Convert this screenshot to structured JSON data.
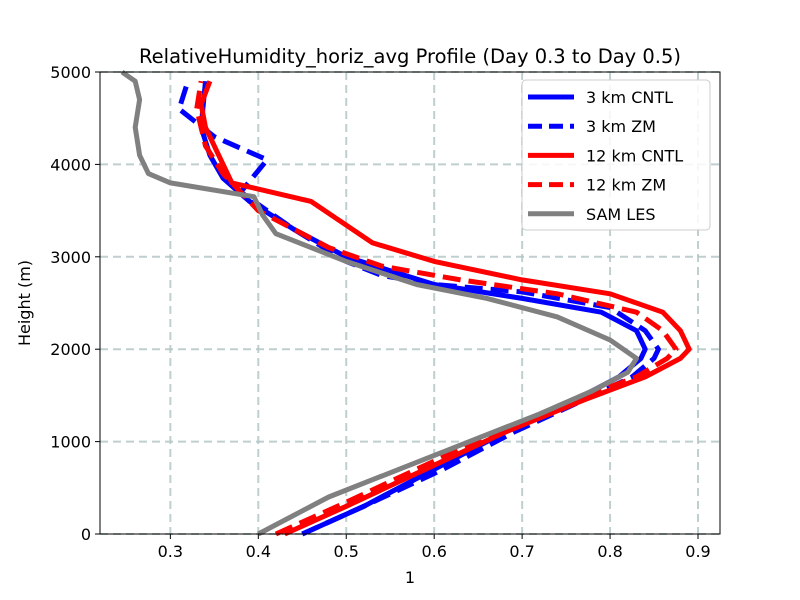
{
  "chart_data": {
    "type": "line",
    "title": "RelativeHumidity_horiz_avg Profile (Day 0.3 to Day 0.5)",
    "xlabel": "1",
    "ylabel": "Height (m)",
    "xlim": [
      0.22,
      0.925
    ],
    "ylim": [
      0,
      5000
    ],
    "xticks": [
      0.3,
      0.4,
      0.5,
      0.6,
      0.7,
      0.8,
      0.9
    ],
    "xtick_labels": [
      "0.3",
      "0.4",
      "0.5",
      "0.6",
      "0.7",
      "0.8",
      "0.9"
    ],
    "yticks": [
      0,
      1000,
      2000,
      3000,
      4000,
      5000
    ],
    "ytick_labels": [
      "0",
      "1000",
      "2000",
      "3000",
      "4000",
      "5000"
    ],
    "grid": true,
    "legend_position": "top-right",
    "series": [
      {
        "name": "3 km CNTL",
        "color": "#0000ff",
        "dashed": false,
        "x": [
          0.45,
          0.52,
          0.6,
          0.68,
          0.76,
          0.81,
          0.835,
          0.84,
          0.83,
          0.79,
          0.7,
          0.6,
          0.55,
          0.5,
          0.44,
          0.39,
          0.36,
          0.345,
          0.335,
          0.34
        ],
        "y": [
          0,
          300,
          700,
          1100,
          1450,
          1700,
          1900,
          2000,
          2200,
          2400,
          2550,
          2700,
          2850,
          3000,
          3300,
          3600,
          3850,
          4100,
          4400,
          4900
        ]
      },
      {
        "name": "3 km ZM",
        "color": "#0000ff",
        "dashed": true,
        "x": [
          0.45,
          0.52,
          0.61,
          0.69,
          0.77,
          0.825,
          0.85,
          0.855,
          0.84,
          0.8,
          0.7,
          0.6,
          0.54,
          0.5,
          0.44,
          0.38,
          0.41,
          0.35,
          0.31,
          0.32
        ],
        "y": [
          0,
          300,
          700,
          1100,
          1450,
          1700,
          1900,
          2000,
          2200,
          2450,
          2620,
          2700,
          2800,
          2950,
          3300,
          3700,
          4050,
          4300,
          4600,
          4900
        ]
      },
      {
        "name": "12 km CNTL",
        "color": "#ff0000",
        "dashed": false,
        "x": [
          0.43,
          0.5,
          0.59,
          0.68,
          0.77,
          0.84,
          0.88,
          0.89,
          0.88,
          0.86,
          0.8,
          0.7,
          0.6,
          0.53,
          0.46,
          0.37,
          0.355,
          0.34,
          0.335,
          0.345
        ],
        "y": [
          0,
          300,
          700,
          1100,
          1450,
          1700,
          1900,
          2000,
          2200,
          2400,
          2600,
          2750,
          2950,
          3150,
          3600,
          3800,
          4100,
          4400,
          4650,
          4900
        ]
      },
      {
        "name": "12 km ZM",
        "color": "#ff0000",
        "dashed": true,
        "x": [
          0.42,
          0.49,
          0.58,
          0.67,
          0.76,
          0.83,
          0.865,
          0.875,
          0.86,
          0.83,
          0.74,
          0.63,
          0.54,
          0.48,
          0.4,
          0.36,
          0.34,
          0.33,
          0.335
        ],
        "y": [
          0,
          300,
          700,
          1100,
          1450,
          1700,
          1900,
          2000,
          2200,
          2400,
          2600,
          2750,
          2900,
          3100,
          3500,
          3900,
          4200,
          4600,
          4900
        ]
      },
      {
        "name": "SAM LES",
        "color": "#808080",
        "dashed": false,
        "x": [
          0.4,
          0.48,
          0.56,
          0.64,
          0.72,
          0.78,
          0.82,
          0.83,
          0.8,
          0.74,
          0.66,
          0.58,
          0.5,
          0.42,
          0.405,
          0.395,
          0.3,
          0.275,
          0.265,
          0.26,
          0.265,
          0.26,
          0.245
        ],
        "y": [
          0,
          400,
          700,
          1000,
          1300,
          1550,
          1750,
          1900,
          2100,
          2350,
          2550,
          2700,
          2950,
          3250,
          3450,
          3650,
          3800,
          3900,
          4100,
          4400,
          4700,
          4900,
          5000
        ]
      }
    ]
  }
}
